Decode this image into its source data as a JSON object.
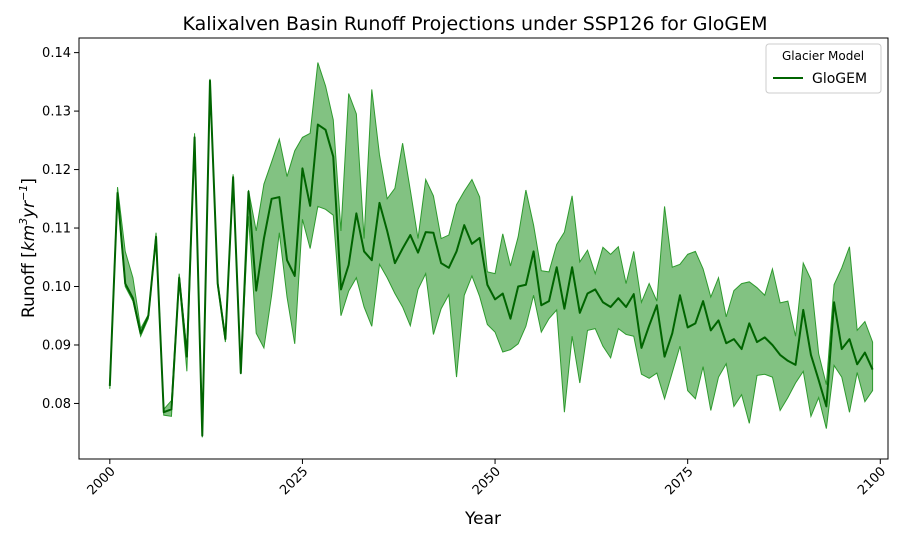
{
  "chart_data": {
    "type": "line",
    "title": "Kalixalven Basin Runoff Projections under SSP126 for GloGEM",
    "xlabel": "Year",
    "ylabel": {
      "prefix": "Runoff [",
      "base1": "km",
      "sup1": "3",
      "base2": "yr",
      "sup2": "−1",
      "suffix": "]"
    },
    "xlim": [
      1996,
      2101
    ],
    "ylim": [
      0.0705,
      0.1425
    ],
    "xticks": [
      2000,
      2025,
      2050,
      2075,
      2100
    ],
    "yticks": [
      0.08,
      0.09,
      0.1,
      0.11,
      0.12,
      0.13,
      0.14
    ],
    "ytick_labels": [
      "0.08",
      "0.09",
      "0.10",
      "0.11",
      "0.12",
      "0.13",
      "0.14"
    ],
    "grid": false,
    "legend": {
      "title": "Glacier Model",
      "placement": "upper-right"
    },
    "colors": {
      "line": "#006400",
      "band": "#2e9a2e"
    },
    "series": [
      {
        "name": "GloGEM",
        "x": [
          2000,
          2001,
          2002,
          2003,
          2004,
          2005,
          2006,
          2007,
          2008,
          2009,
          2010,
          2011,
          2012,
          2013,
          2014,
          2015,
          2016,
          2017,
          2018,
          2019,
          2020,
          2021,
          2022,
          2023,
          2024,
          2025,
          2026,
          2027,
          2028,
          2029,
          2030,
          2031,
          2032,
          2033,
          2034,
          2035,
          2036,
          2037,
          2038,
          2039,
          2040,
          2041,
          2042,
          2043,
          2044,
          2045,
          2046,
          2047,
          2048,
          2049,
          2050,
          2051,
          2052,
          2053,
          2054,
          2055,
          2056,
          2057,
          2058,
          2059,
          2060,
          2061,
          2062,
          2063,
          2064,
          2065,
          2066,
          2067,
          2068,
          2069,
          2070,
          2071,
          2072,
          2073,
          2074,
          2075,
          2076,
          2077,
          2078,
          2079,
          2080,
          2081,
          2082,
          2083,
          2084,
          2085,
          2086,
          2087,
          2088,
          2089,
          2090,
          2091,
          2092,
          2093,
          2094,
          2095,
          2096,
          2097,
          2098,
          2099
        ],
        "mean": [
          0.083,
          0.116,
          0.1005,
          0.098,
          0.092,
          0.095,
          0.1085,
          0.0785,
          0.079,
          0.1015,
          0.088,
          0.1255,
          0.0745,
          0.1352,
          0.1005,
          0.091,
          0.1187,
          0.0852,
          0.1162,
          0.0993,
          0.1082,
          0.115,
          0.1153,
          0.1045,
          0.1018,
          0.1202,
          0.1138,
          0.1277,
          0.1268,
          0.1222,
          0.0995,
          0.1037,
          0.1125,
          0.106,
          0.1045,
          0.1143,
          0.1095,
          0.104,
          0.1065,
          0.1088,
          0.1058,
          0.1093,
          0.1092,
          0.104,
          0.1032,
          0.106,
          0.1105,
          0.1073,
          0.1083,
          0.1003,
          0.0978,
          0.0988,
          0.0945,
          0.1,
          0.1003,
          0.106,
          0.0968,
          0.0975,
          0.1033,
          0.0962,
          0.1033,
          0.0955,
          0.0988,
          0.0995,
          0.0973,
          0.0965,
          0.098,
          0.0965,
          0.0987,
          0.0895,
          0.0933,
          0.0968,
          0.088,
          0.092,
          0.0985,
          0.093,
          0.0937,
          0.0975,
          0.0925,
          0.0942,
          0.0903,
          0.091,
          0.0893,
          0.0937,
          0.0905,
          0.0913,
          0.09,
          0.0883,
          0.0873,
          0.0866,
          0.096,
          0.0883,
          0.084,
          0.0795,
          0.0973,
          0.0893,
          0.091,
          0.0867,
          0.0887,
          0.0858
        ],
        "lower": [
          0.0825,
          0.1155,
          0.1,
          0.0975,
          0.0915,
          0.0945,
          0.108,
          0.078,
          0.0778,
          0.101,
          0.0855,
          0.125,
          0.0742,
          0.1345,
          0.1,
          0.0905,
          0.118,
          0.085,
          0.112,
          0.092,
          0.0895,
          0.0985,
          0.1092,
          0.0982,
          0.0902,
          0.1115,
          0.1065,
          0.1137,
          0.1132,
          0.1122,
          0.095,
          0.0992,
          0.1015,
          0.0965,
          0.0932,
          0.1038,
          0.1015,
          0.0988,
          0.0965,
          0.0933,
          0.0995,
          0.1022,
          0.0918,
          0.0962,
          0.0986,
          0.0845,
          0.0985,
          0.1018,
          0.0983,
          0.0935,
          0.0922,
          0.0888,
          0.0892,
          0.0902,
          0.0932,
          0.0985,
          0.0922,
          0.0945,
          0.096,
          0.0785,
          0.0915,
          0.0835,
          0.0925,
          0.0928,
          0.0898,
          0.0878,
          0.0928,
          0.0918,
          0.0915,
          0.085,
          0.0843,
          0.0852,
          0.0808,
          0.0853,
          0.0898,
          0.0822,
          0.0808,
          0.0863,
          0.0788,
          0.0845,
          0.0868,
          0.0795,
          0.0815,
          0.0766,
          0.0848,
          0.085,
          0.0845,
          0.0788,
          0.081,
          0.0835,
          0.0855,
          0.0778,
          0.081,
          0.0757,
          0.0865,
          0.0845,
          0.0785,
          0.0853,
          0.0803,
          0.0822
        ],
        "upper": [
          0.0838,
          0.117,
          0.106,
          0.1015,
          0.0928,
          0.0952,
          0.1092,
          0.079,
          0.0805,
          0.1022,
          0.089,
          0.1262,
          0.0752,
          0.1355,
          0.101,
          0.0915,
          0.1192,
          0.0855,
          0.1165,
          0.1095,
          0.1175,
          0.1213,
          0.1252,
          0.1188,
          0.1232,
          0.1255,
          0.1262,
          0.1383,
          0.1343,
          0.1285,
          0.1095,
          0.133,
          0.1295,
          0.1082,
          0.1337,
          0.1225,
          0.115,
          0.1168,
          0.1245,
          0.1165,
          0.1082,
          0.1183,
          0.1155,
          0.1082,
          0.1088,
          0.114,
          0.1163,
          0.1183,
          0.1153,
          0.1025,
          0.1022,
          0.109,
          0.1035,
          0.1085,
          0.1165,
          0.1105,
          0.1027,
          0.1025,
          0.1072,
          0.1093,
          0.1155,
          0.1042,
          0.1062,
          0.1022,
          0.1067,
          0.1055,
          0.1068,
          0.1005,
          0.106,
          0.0973,
          0.1005,
          0.0975,
          0.1137,
          0.1033,
          0.1038,
          0.1055,
          0.106,
          0.103,
          0.0982,
          0.1015,
          0.0948,
          0.0993,
          0.1005,
          0.1008,
          0.0998,
          0.0985,
          0.103,
          0.0972,
          0.0975,
          0.0915,
          0.104,
          0.1012,
          0.0885,
          0.0832,
          0.1003,
          0.1032,
          0.1068,
          0.0925,
          0.094,
          0.0905
        ]
      }
    ]
  }
}
